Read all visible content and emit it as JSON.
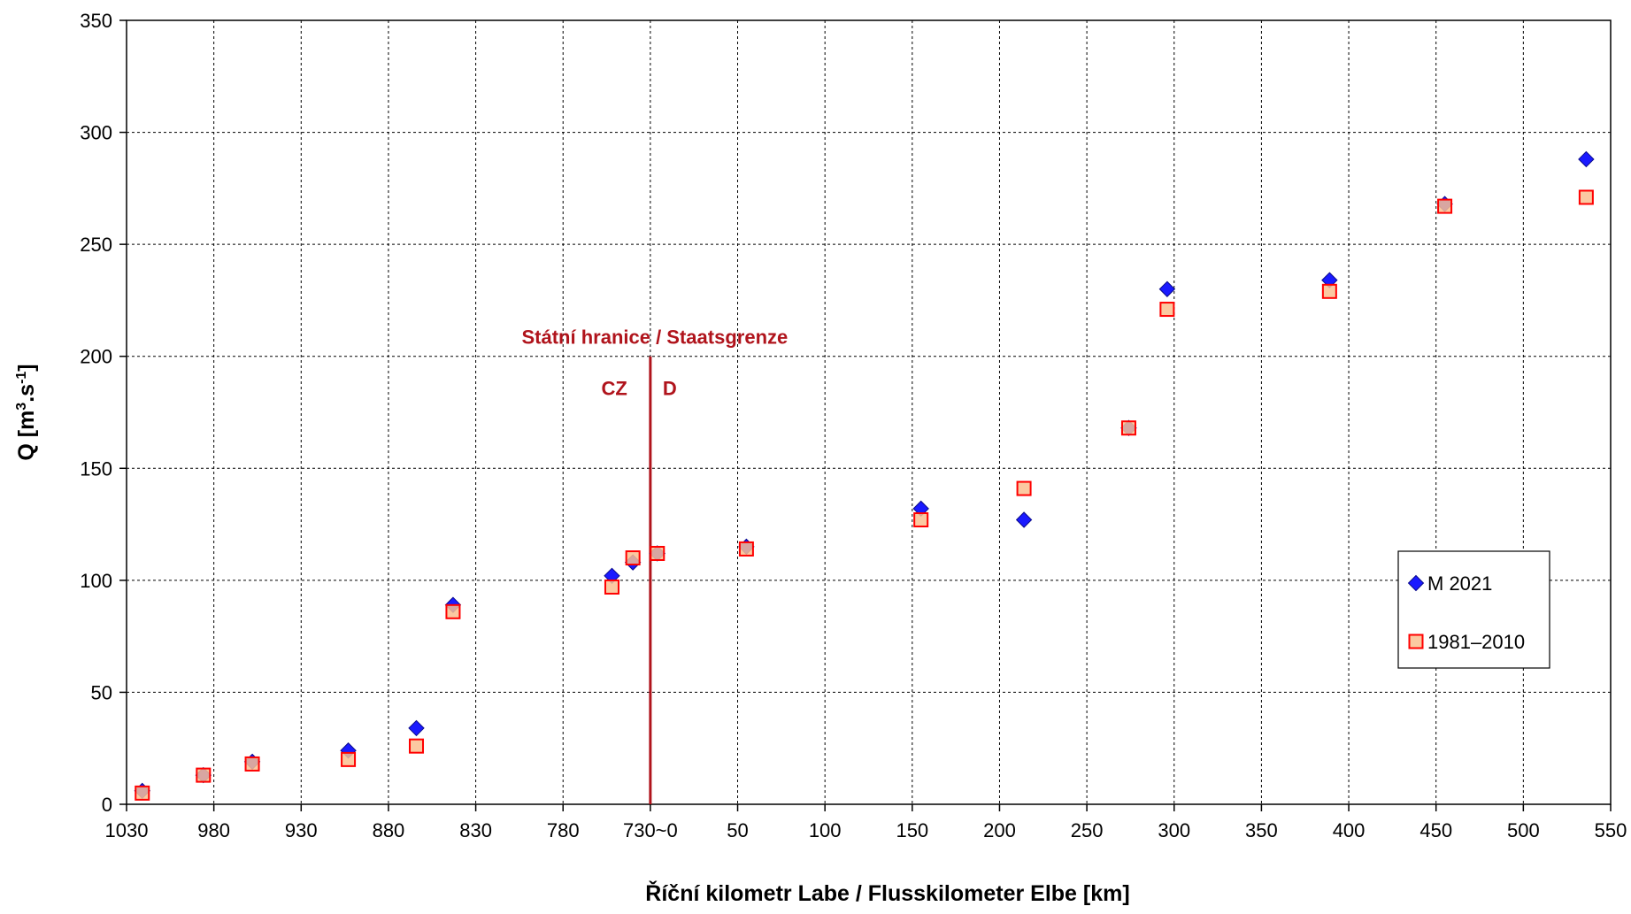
{
  "chart_data": {
    "type": "scatter",
    "xlabel": "Říční kilometr Labe / Flusskilometer Elbe [km]",
    "ylabel": "Q [m³.s⁻¹]",
    "ylabel_parts": {
      "pre": "Q [m",
      "sup1": "3",
      "mid": ".s",
      "sup2": "-1",
      "post": "]"
    },
    "ylim": [
      0,
      350
    ],
    "y_ticks": [
      0,
      50,
      100,
      150,
      200,
      250,
      300,
      350
    ],
    "x_tick_labels": [
      "1030",
      "980",
      "930",
      "880",
      "830",
      "780",
      "730~0",
      "50",
      "100",
      "150",
      "200",
      "250",
      "300",
      "350",
      "400",
      "450",
      "500",
      "550"
    ],
    "x_axis_note": "Axis is split: Czech river km descending 1030→730, then German river km ascending 0→550 (730 ≡ 0 at the state border).",
    "grid": true,
    "legend_position": "right",
    "annotation": {
      "title": "Státní hranice / Staatsgrenze",
      "left": "CZ",
      "right": "D",
      "border_x": "730~0",
      "color": "#b0141c"
    },
    "series": [
      {
        "name": "M 2021",
        "marker": "diamond",
        "color": "#1a1aff",
        "points": [
          {
            "sector": "cz",
            "km": 1021,
            "q": 6
          },
          {
            "sector": "cz",
            "km": 986,
            "q": 13
          },
          {
            "sector": "cz",
            "km": 958,
            "q": 19
          },
          {
            "sector": "cz",
            "km": 903,
            "q": 24
          },
          {
            "sector": "cz",
            "km": 864,
            "q": 34
          },
          {
            "sector": "cz",
            "km": 843,
            "q": 89
          },
          {
            "sector": "cz",
            "km": 752,
            "q": 102
          },
          {
            "sector": "cz",
            "km": 740,
            "q": 108
          },
          {
            "sector": "de",
            "km": 4,
            "q": 112
          },
          {
            "sector": "de",
            "km": 55,
            "q": 115
          },
          {
            "sector": "de",
            "km": 155,
            "q": 132
          },
          {
            "sector": "de",
            "km": 214,
            "q": 127
          },
          {
            "sector": "de",
            "km": 274,
            "q": 168
          },
          {
            "sector": "de",
            "km": 296,
            "q": 230
          },
          {
            "sector": "de",
            "km": 389,
            "q": 234
          },
          {
            "sector": "de",
            "km": 455,
            "q": 268
          },
          {
            "sector": "de",
            "km": 536,
            "q": 288
          }
        ]
      },
      {
        "name": "1981–2010",
        "marker": "square",
        "color": "#ff0000",
        "fill": "#fac090",
        "points": [
          {
            "sector": "cz",
            "km": 1021,
            "q": 5
          },
          {
            "sector": "cz",
            "km": 986,
            "q": 13
          },
          {
            "sector": "cz",
            "km": 958,
            "q": 18
          },
          {
            "sector": "cz",
            "km": 903,
            "q": 20
          },
          {
            "sector": "cz",
            "km": 864,
            "q": 26
          },
          {
            "sector": "cz",
            "km": 843,
            "q": 86
          },
          {
            "sector": "cz",
            "km": 752,
            "q": 97
          },
          {
            "sector": "cz",
            "km": 740,
            "q": 110
          },
          {
            "sector": "de",
            "km": 4,
            "q": 112
          },
          {
            "sector": "de",
            "km": 55,
            "q": 114
          },
          {
            "sector": "de",
            "km": 155,
            "q": 127
          },
          {
            "sector": "de",
            "km": 214,
            "q": 141
          },
          {
            "sector": "de",
            "km": 274,
            "q": 168
          },
          {
            "sector": "de",
            "km": 296,
            "q": 221
          },
          {
            "sector": "de",
            "km": 389,
            "q": 229
          },
          {
            "sector": "de",
            "km": 455,
            "q": 267
          },
          {
            "sector": "de",
            "km": 536,
            "q": 271
          }
        ]
      }
    ]
  }
}
